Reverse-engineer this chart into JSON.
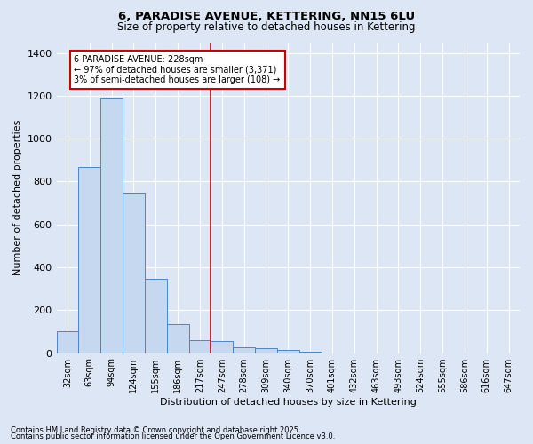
{
  "title": "6, PARADISE AVENUE, KETTERING, NN15 6LU",
  "subtitle": "Size of property relative to detached houses in Kettering",
  "xlabel": "Distribution of detached houses by size in Kettering",
  "ylabel": "Number of detached properties",
  "bar_labels": [
    "32sqm",
    "63sqm",
    "94sqm",
    "124sqm",
    "155sqm",
    "186sqm",
    "217sqm",
    "247sqm",
    "278sqm",
    "309sqm",
    "340sqm",
    "370sqm",
    "401sqm",
    "432sqm",
    "463sqm",
    "493sqm",
    "524sqm",
    "555sqm",
    "586sqm",
    "616sqm",
    "647sqm"
  ],
  "bar_values": [
    100,
    870,
    1190,
    750,
    345,
    135,
    60,
    55,
    28,
    22,
    14,
    8,
    0,
    0,
    0,
    0,
    0,
    0,
    0,
    0,
    0
  ],
  "bar_color": "#c5d8ef",
  "bar_edgecolor": "#4a86c8",
  "vline_x": 6.5,
  "vline_color": "#cc0000",
  "annotation_text": "6 PARADISE AVENUE: 228sqm\n← 97% of detached houses are smaller (3,371)\n3% of semi-detached houses are larger (108) →",
  "annotation_box_color": "#ffffff",
  "annotation_box_edgecolor": "#cc0000",
  "ylim": [
    0,
    1450
  ],
  "yticks": [
    0,
    200,
    400,
    600,
    800,
    1000,
    1200,
    1400
  ],
  "bg_color": "#dce6f5",
  "grid_color": "#ffffff",
  "footer1": "Contains HM Land Registry data © Crown copyright and database right 2025.",
  "footer2": "Contains public sector information licensed under the Open Government Licence v3.0."
}
